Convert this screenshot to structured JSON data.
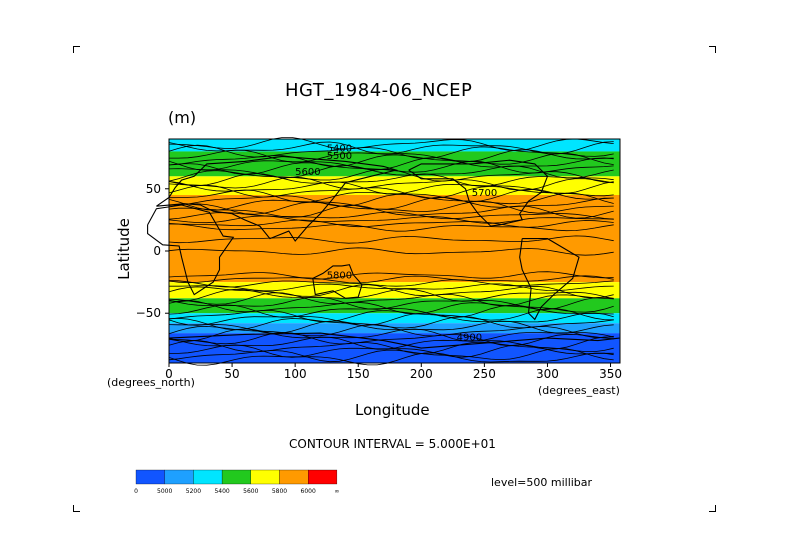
{
  "chart_data": {
    "type": "contour",
    "title": "HGT_1984-06_NCEP",
    "units": "(m)",
    "xlabel": "Longitude",
    "ylabel": "Latitude",
    "x_unit_label": "(degrees_east)",
    "y_unit_label": "(degrees_north)",
    "xlim": [
      0,
      357.5
    ],
    "ylim": [
      -90,
      90
    ],
    "x_ticks": [
      "0",
      "50",
      "100",
      "150",
      "200",
      "250",
      "300",
      "350"
    ],
    "y_ticks": [
      "50",
      "0",
      "−50"
    ],
    "contour_interval_label": "CONTOUR INTERVAL = 5.000E+01",
    "level_label": "level=500 millibar",
    "contour_labels": [
      "5400",
      "5500",
      "5600",
      "5700",
      "5800",
      "4900"
    ],
    "bands": [
      {
        "lat_from": 90,
        "lat_to": 80,
        "color": "#00e5ff"
      },
      {
        "lat_from": 80,
        "lat_to": 60,
        "color": "#22c91e"
      },
      {
        "lat_from": 60,
        "lat_to": 45,
        "color": "#ffff00"
      },
      {
        "lat_from": 45,
        "lat_to": -25,
        "color": "#ff9a00"
      },
      {
        "lat_from": -25,
        "lat_to": -38,
        "color": "#ffff00"
      },
      {
        "lat_from": -38,
        "lat_to": -50,
        "color": "#22c91e"
      },
      {
        "lat_from": -50,
        "lat_to": -58,
        "color": "#00e5ff"
      },
      {
        "lat_from": -58,
        "lat_to": -66,
        "color": "#1ea0ff"
      },
      {
        "lat_from": -66,
        "lat_to": -90,
        "color": "#1155ff"
      }
    ],
    "colorbar": {
      "colors": [
        "#1155ff",
        "#1ea0ff",
        "#00e5ff",
        "#22c91e",
        "#ffff00",
        "#ff9a00",
        "#ff0000"
      ],
      "labels": [
        "0",
        "5000",
        "5200",
        "5400",
        "5600",
        "5800",
        "6000",
        "∞"
      ]
    }
  }
}
